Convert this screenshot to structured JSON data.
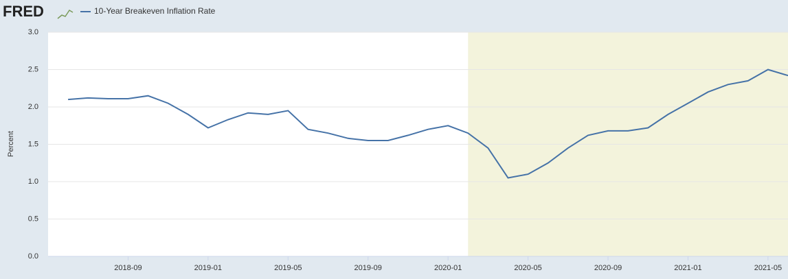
{
  "logo": "FRED",
  "chart_data": {
    "type": "line",
    "x": [
      "2018-06",
      "2018-07",
      "2018-08",
      "2018-09",
      "2018-10",
      "2018-11",
      "2018-12",
      "2019-01",
      "2019-02",
      "2019-03",
      "2019-04",
      "2019-05",
      "2019-06",
      "2019-07",
      "2019-08",
      "2019-09",
      "2019-10",
      "2019-11",
      "2019-12",
      "2020-01",
      "2020-02",
      "2020-03",
      "2020-04",
      "2020-05",
      "2020-06",
      "2020-07",
      "2020-08",
      "2020-09",
      "2020-10",
      "2020-11",
      "2020-12",
      "2021-01",
      "2021-02",
      "2021-03",
      "2021-04",
      "2021-05",
      "2021-06"
    ],
    "series": [
      {
        "name": "10-Year Breakeven Inflation Rate",
        "color": "#4572a7",
        "values": [
          2.1,
          2.12,
          2.11,
          2.11,
          2.15,
          2.05,
          1.9,
          1.72,
          1.83,
          1.92,
          1.9,
          1.95,
          1.7,
          1.65,
          1.58,
          1.55,
          1.55,
          1.62,
          1.7,
          1.75,
          1.65,
          1.45,
          1.05,
          1.1,
          1.25,
          1.45,
          1.62,
          1.68,
          1.68,
          1.72,
          1.9,
          2.05,
          2.2,
          2.3,
          2.35,
          2.5,
          2.42
        ]
      }
    ],
    "y_label": "Percent",
    "xlim": [
      "2018-05",
      "2021-06"
    ],
    "xticks": [
      "2018-09",
      "2019-01",
      "2019-05",
      "2019-09",
      "2020-01",
      "2020-05",
      "2020-09",
      "2021-01",
      "2021-05"
    ],
    "ylim": [
      0,
      3
    ],
    "yticks": [
      {
        "value": 0,
        "label": "0.0"
      },
      0.5,
      {
        "value": 1,
        "label": "1.0"
      },
      1.5,
      {
        "value": 2,
        "label": "2.0"
      },
      2.5,
      {
        "value": 3,
        "label": "3.0"
      }
    ],
    "shaded_range": [
      "2020-02",
      "2021-06"
    ],
    "shade_color": "#f3f3dc",
    "grid": true
  }
}
